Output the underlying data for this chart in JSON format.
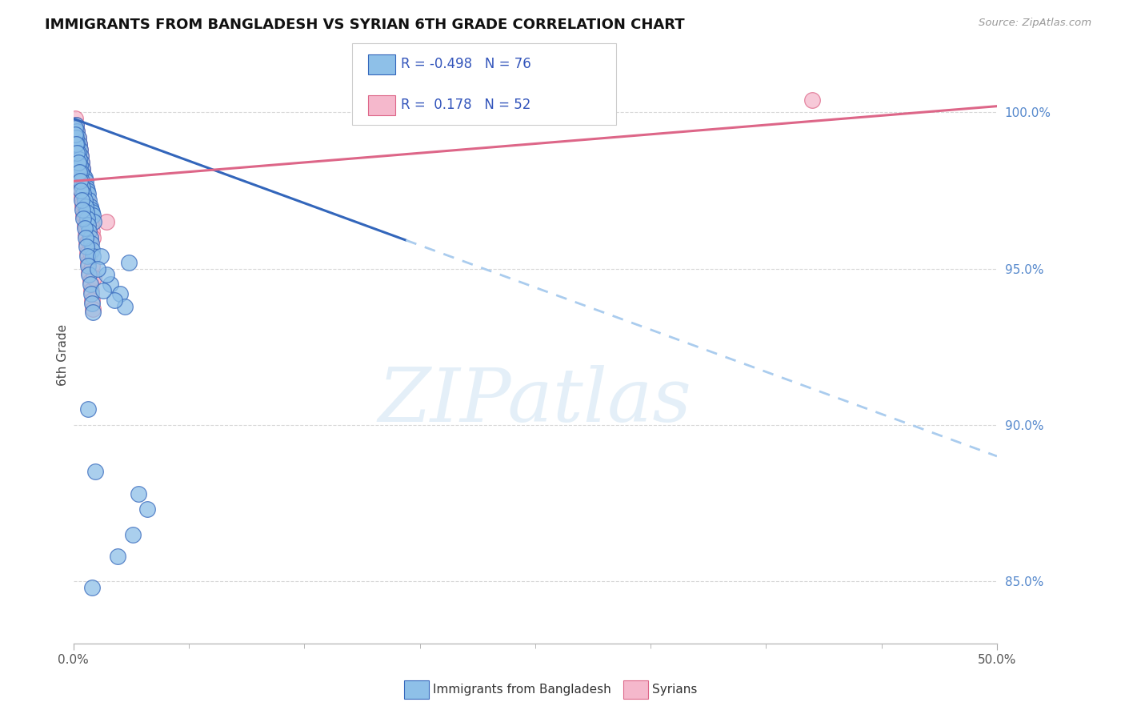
{
  "title": "IMMIGRANTS FROM BANGLADESH VS SYRIAN 6TH GRADE CORRELATION CHART",
  "source": "Source: ZipAtlas.com",
  "ylabel": "6th Grade",
  "xlim": [
    0.0,
    50.0
  ],
  "ylim": [
    83.0,
    101.5
  ],
  "yticks_right": [
    85.0,
    90.0,
    95.0,
    100.0
  ],
  "color_blue": "#8ec0e8",
  "color_pink": "#f5b8cc",
  "line_color_blue": "#3366bb",
  "line_color_pink": "#dd6688",
  "watermark": "ZIPatlas",
  "bg_color": "#ffffff",
  "grid_color": "#d8d8d8",
  "bangladesh_points": [
    [
      0.15,
      99.6
    ],
    [
      0.2,
      99.4
    ],
    [
      0.25,
      99.2
    ],
    [
      0.3,
      99.0
    ],
    [
      0.35,
      98.8
    ],
    [
      0.4,
      98.6
    ],
    [
      0.45,
      98.4
    ],
    [
      0.5,
      98.2
    ],
    [
      0.55,
      98.0
    ],
    [
      0.6,
      97.9
    ],
    [
      0.65,
      97.8
    ],
    [
      0.7,
      97.6
    ],
    [
      0.75,
      97.5
    ],
    [
      0.8,
      97.4
    ],
    [
      0.85,
      97.2
    ],
    [
      0.9,
      97.0
    ],
    [
      0.95,
      96.9
    ],
    [
      1.0,
      96.8
    ],
    [
      1.05,
      96.7
    ],
    [
      1.1,
      96.5
    ],
    [
      0.1,
      99.5
    ],
    [
      0.15,
      99.2
    ],
    [
      0.2,
      99.0
    ],
    [
      0.25,
      98.7
    ],
    [
      0.3,
      98.5
    ],
    [
      0.35,
      98.3
    ],
    [
      0.4,
      98.1
    ],
    [
      0.45,
      97.8
    ],
    [
      0.5,
      97.6
    ],
    [
      0.55,
      97.4
    ],
    [
      0.6,
      97.2
    ],
    [
      0.65,
      97.0
    ],
    [
      0.7,
      96.8
    ],
    [
      0.75,
      96.6
    ],
    [
      0.8,
      96.4
    ],
    [
      0.85,
      96.2
    ],
    [
      0.9,
      96.0
    ],
    [
      0.95,
      95.8
    ],
    [
      1.0,
      95.6
    ],
    [
      1.05,
      95.4
    ],
    [
      0.1,
      99.3
    ],
    [
      0.15,
      99.0
    ],
    [
      0.2,
      98.7
    ],
    [
      0.25,
      98.4
    ],
    [
      0.3,
      98.1
    ],
    [
      0.35,
      97.8
    ],
    [
      0.4,
      97.5
    ],
    [
      0.45,
      97.2
    ],
    [
      0.5,
      96.9
    ],
    [
      0.55,
      96.6
    ],
    [
      0.6,
      96.3
    ],
    [
      0.65,
      96.0
    ],
    [
      0.7,
      95.7
    ],
    [
      0.75,
      95.4
    ],
    [
      0.8,
      95.1
    ],
    [
      0.85,
      94.8
    ],
    [
      0.9,
      94.5
    ],
    [
      0.95,
      94.2
    ],
    [
      1.0,
      93.9
    ],
    [
      1.05,
      93.6
    ],
    [
      1.5,
      95.4
    ],
    [
      3.0,
      95.2
    ],
    [
      2.0,
      94.5
    ],
    [
      2.5,
      94.2
    ],
    [
      2.8,
      93.8
    ],
    [
      1.8,
      94.8
    ],
    [
      1.3,
      95.0
    ],
    [
      2.2,
      94.0
    ],
    [
      1.6,
      94.3
    ],
    [
      0.8,
      90.5
    ],
    [
      1.2,
      88.5
    ],
    [
      3.5,
      87.8
    ],
    [
      4.0,
      87.3
    ],
    [
      3.2,
      86.5
    ],
    [
      2.4,
      85.8
    ],
    [
      1.0,
      84.8
    ]
  ],
  "syrian_points": [
    [
      0.1,
      99.8
    ],
    [
      0.15,
      99.6
    ],
    [
      0.2,
      99.4
    ],
    [
      0.25,
      99.2
    ],
    [
      0.3,
      99.0
    ],
    [
      0.35,
      98.8
    ],
    [
      0.4,
      98.6
    ],
    [
      0.45,
      98.4
    ],
    [
      0.5,
      98.2
    ],
    [
      0.55,
      98.0
    ],
    [
      0.6,
      97.8
    ],
    [
      0.65,
      97.6
    ],
    [
      0.7,
      97.4
    ],
    [
      0.75,
      97.2
    ],
    [
      0.8,
      97.0
    ],
    [
      0.85,
      96.8
    ],
    [
      0.9,
      96.6
    ],
    [
      0.95,
      96.4
    ],
    [
      1.0,
      96.2
    ],
    [
      1.05,
      96.0
    ],
    [
      0.1,
      99.4
    ],
    [
      0.15,
      99.1
    ],
    [
      0.2,
      98.8
    ],
    [
      0.25,
      98.5
    ],
    [
      0.3,
      98.2
    ],
    [
      0.35,
      97.9
    ],
    [
      0.4,
      97.6
    ],
    [
      0.45,
      97.3
    ],
    [
      0.5,
      97.0
    ],
    [
      0.55,
      96.7
    ],
    [
      0.6,
      96.4
    ],
    [
      0.65,
      96.1
    ],
    [
      0.7,
      95.8
    ],
    [
      0.75,
      95.5
    ],
    [
      0.8,
      95.2
    ],
    [
      0.85,
      94.9
    ],
    [
      0.9,
      94.6
    ],
    [
      0.95,
      94.3
    ],
    [
      1.0,
      94.0
    ],
    [
      1.05,
      93.7
    ],
    [
      0.2,
      98.3
    ],
    [
      0.3,
      97.9
    ],
    [
      0.4,
      97.5
    ],
    [
      0.5,
      97.1
    ],
    [
      0.6,
      96.7
    ],
    [
      0.7,
      96.3
    ],
    [
      0.8,
      95.9
    ],
    [
      0.9,
      95.5
    ],
    [
      1.0,
      95.1
    ],
    [
      1.1,
      94.7
    ],
    [
      1.8,
      96.5
    ],
    [
      40.0,
      100.4
    ]
  ],
  "blue_line_y_at_0": 99.8,
  "blue_line_y_at_50": 89.0,
  "blue_solid_end_x": 18.0,
  "pink_line_y_at_0": 97.8,
  "pink_line_y_at_50": 100.2,
  "xtick_minor_positions": [
    6.25,
    12.5,
    18.75,
    25.0,
    31.25,
    37.5,
    43.75
  ]
}
